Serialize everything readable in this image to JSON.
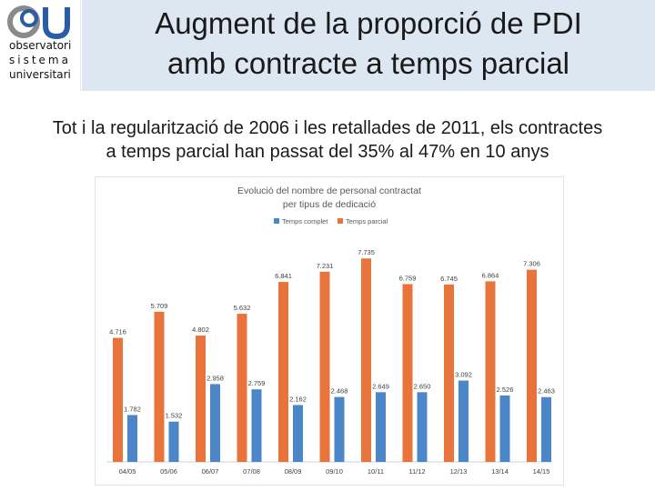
{
  "logo": {
    "icon": "osu-logo-mark",
    "colors": {
      "blue": "#2a5ca8",
      "gray": "#8a8a8a"
    },
    "lines": [
      "observatori",
      "sistema",
      "universitari"
    ]
  },
  "slide": {
    "title_line1": "Augment de la proporció de PDI",
    "title_line2": "amb contracte a temps parcial",
    "subtitle_line1": "Tot i la regularització de 2006 i les retallades de 2011, els contractes",
    "subtitle_line2": "a temps parcial han passat del 35% al 47% en 10 anys"
  },
  "chart_data": {
    "type": "bar",
    "title_line1": "Evolució del nombre de personal contractat",
    "title_line2": "per tipus de dedicació",
    "legend_position": "top",
    "categories": [
      "04/05",
      "05/06",
      "06/07",
      "07/08",
      "08/09",
      "09/10",
      "10/11",
      "11/12",
      "12/13",
      "13/14",
      "14/15"
    ],
    "series": [
      {
        "name": "Temps complet",
        "color": "#4a86c8",
        "values": [
          1782,
          1532,
          2958,
          2759,
          2162,
          2468,
          2649,
          2650,
          3092,
          2526,
          2463
        ],
        "labels": [
          "1.782",
          "1.532",
          "2.958",
          "2.759",
          "2.162",
          "2.468",
          "2.649",
          "2.650",
          "3.092",
          "2.526",
          "2.463"
        ]
      },
      {
        "name": "Temps parcial",
        "color": "#e8743b",
        "values": [
          4716,
          5709,
          4802,
          5632,
          6841,
          7231,
          7735,
          6759,
          6745,
          6864,
          7306
        ],
        "labels": [
          "4.716",
          "5.709",
          "4.802",
          "5.632",
          "6.841",
          "7.231",
          "7.735",
          "6.759",
          "6.745",
          "6.864",
          "7.306"
        ]
      }
    ],
    "ylim": [
      0,
      8400
    ],
    "grid": false
  }
}
